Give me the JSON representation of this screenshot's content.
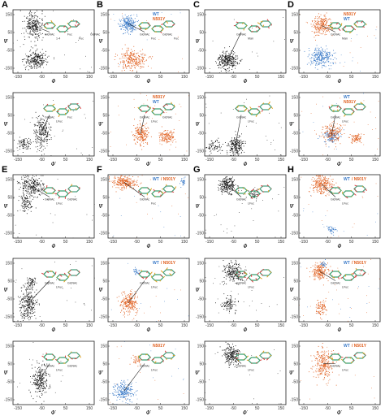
{
  "figure": {
    "colors": {
      "wt": "#3a7ac8",
      "mutant": "#e06020",
      "black": "#1a1a1a",
      "arrow": "#222222"
    },
    "rows": [
      {
        "labels": [
          "A",
          "B",
          "C",
          "D"
        ]
      },
      {
        "labels": [
          "E",
          "F",
          "G",
          "H"
        ]
      }
    ],
    "panels": [
      {
        "id": "A1",
        "letter": "A",
        "xticks": [
          "-150",
          "-50",
          "50",
          "150"
        ],
        "yticks": [
          "150",
          "50",
          "-50",
          "-150"
        ],
        "xlabel": "Φ",
        "ylabel": "Ψ",
        "mols": [
          "GlcNAc",
          "1-4",
          "Fuc",
          "Fuc",
          "GlcNAc"
        ],
        "legend": [],
        "clusters": [
          {
            "c": "black",
            "x": 0.25,
            "y": 0.25,
            "sx": 0.06,
            "sy": 0.1,
            "n": 260
          },
          {
            "c": "black",
            "x": 0.28,
            "y": 0.78,
            "sx": 0.07,
            "sy": 0.07,
            "n": 260
          }
        ]
      },
      {
        "id": "B1",
        "letter": "B",
        "xticks": [
          "-150",
          "-50",
          "50",
          "150"
        ],
        "yticks": [
          "150",
          "50",
          "-50",
          "-150"
        ],
        "xlabel": "Φ",
        "ylabel": "Ψ",
        "mols": [
          "GlcNAc",
          "Fuc",
          "GlcNAc",
          "Fuc"
        ],
        "legend": [
          [
            "WT",
            "wt"
          ],
          [
            "N501Y",
            "mutant"
          ]
        ],
        "clusters": [
          {
            "c": "wt",
            "x": 0.25,
            "y": 0.22,
            "sx": 0.05,
            "sy": 0.06,
            "n": 220
          },
          {
            "c": "mutant",
            "x": 0.3,
            "y": 0.78,
            "sx": 0.08,
            "sy": 0.08,
            "n": 260
          }
        ]
      },
      {
        "id": "C1",
        "letter": "C",
        "xticks": [
          "-150",
          "-50",
          "50",
          "150"
        ],
        "yticks": [
          "150",
          "50",
          "-50",
          "-150"
        ],
        "xlabel": "Φ",
        "ylabel": "Ψ",
        "mols": [
          "GlcNAc",
          "Man"
        ],
        "legend": [],
        "clusters": [
          {
            "c": "black",
            "x": 0.28,
            "y": 0.8,
            "sx": 0.06,
            "sy": 0.07,
            "n": 300
          }
        ]
      },
      {
        "id": "D1",
        "letter": "D",
        "xticks": [
          "-150",
          "-50",
          "50",
          "150"
        ],
        "yticks": [
          "150",
          "50",
          "-50",
          "-150"
        ],
        "xlabel": "Φ",
        "ylabel": "Ψ",
        "mols": [
          "GlcNAc",
          "Man"
        ],
        "legend": [
          [
            "N501Y",
            "mutant"
          ],
          [
            "WT",
            "wt"
          ]
        ],
        "clusters": [
          {
            "c": "mutant",
            "x": 0.28,
            "y": 0.25,
            "sx": 0.06,
            "sy": 0.08,
            "n": 230
          },
          {
            "c": "wt",
            "x": 0.27,
            "y": 0.75,
            "sx": 0.07,
            "sy": 0.07,
            "n": 260
          }
        ]
      },
      {
        "id": "A2",
        "letter": "",
        "xticks": [
          "-150",
          "-50",
          "50",
          "150"
        ],
        "yticks": [
          "150",
          "50",
          "-50",
          "-150"
        ],
        "xlabel": "Φ′",
        "ylabel": "Ψ",
        "mols": [
          "GlcNAc",
          "LFuc",
          "Fuc"
        ],
        "legend": [],
        "clusters": [
          {
            "c": "black",
            "x": 0.35,
            "y": 0.62,
            "sx": 0.05,
            "sy": 0.12,
            "n": 240
          },
          {
            "c": "black",
            "x": 0.12,
            "y": 0.8,
            "sx": 0.04,
            "sy": 0.05,
            "n": 80
          }
        ]
      },
      {
        "id": "B2",
        "letter": "",
        "xticks": [
          "-150",
          "-50",
          "50",
          "150"
        ],
        "yticks": [
          "150",
          "50",
          "-50",
          "-150"
        ],
        "xlabel": "Φ′",
        "ylabel": "Ψ′",
        "mols": [
          "GlcNAc",
          "LFuc",
          "GlcNAc"
        ],
        "legend": [
          [
            "N501Y",
            "mutant"
          ],
          [
            "WT",
            "wt"
          ]
        ],
        "clusters": [
          {
            "c": "mutant",
            "x": 0.4,
            "y": 0.65,
            "sx": 0.05,
            "sy": 0.08,
            "n": 200
          },
          {
            "c": "mutant",
            "x": 0.72,
            "y": 0.68,
            "sx": 0.05,
            "sy": 0.05,
            "n": 140
          }
        ]
      },
      {
        "id": "C2",
        "letter": "",
        "xticks": [
          "-150",
          "-50",
          "50",
          "150"
        ],
        "yticks": [
          "150",
          "50",
          "-50",
          "-150"
        ],
        "xlabel": "Φ",
        "ylabel": "Ψ",
        "mols": [
          "GlcNAc",
          "LFuc"
        ],
        "legend": [],
        "clusters": [
          {
            "c": "black",
            "x": 0.38,
            "y": 0.82,
            "sx": 0.05,
            "sy": 0.07,
            "n": 220
          },
          {
            "c": "black",
            "x": 0.12,
            "y": 0.85,
            "sx": 0.04,
            "sy": 0.05,
            "n": 70
          }
        ]
      },
      {
        "id": "D2",
        "letter": "",
        "xticks": [
          "-150",
          "-50",
          "50",
          "150"
        ],
        "yticks": [
          "150",
          "50",
          "-50",
          "-150"
        ],
        "xlabel": "Φ′",
        "ylabel": "Ψ′",
        "mols": [
          "GlcNAc",
          "LFuc"
        ],
        "legend": [
          [
            "WT",
            "wt"
          ],
          [
            "N501Y",
            "mutant"
          ]
        ],
        "clusters": [
          {
            "c": "wt",
            "x": 0.4,
            "y": 0.68,
            "sx": 0.05,
            "sy": 0.05,
            "n": 140
          },
          {
            "c": "mutant",
            "x": 0.42,
            "y": 0.62,
            "sx": 0.06,
            "sy": 0.08,
            "n": 180
          },
          {
            "c": "mutant",
            "x": 0.7,
            "y": 0.72,
            "sx": 0.04,
            "sy": 0.04,
            "n": 80
          }
        ]
      },
      {
        "id": "E1",
        "letter": "E",
        "xticks": [
          "-150",
          "-50",
          "50",
          "150"
        ],
        "yticks": [
          "150",
          "50",
          "-50",
          "-150"
        ],
        "xlabel": "Φ",
        "ylabel": "Ψ",
        "mols": [
          "GlcNAc",
          "LFuc",
          "GlcNAc"
        ],
        "legend": [],
        "clusters": [
          {
            "c": "black",
            "x": 0.22,
            "y": 0.18,
            "sx": 0.07,
            "sy": 0.08,
            "n": 260
          },
          {
            "c": "black",
            "x": 0.16,
            "y": 0.45,
            "sx": 0.04,
            "sy": 0.06,
            "n": 100
          }
        ]
      },
      {
        "id": "F1",
        "letter": "F",
        "xticks": [
          "-150",
          "-50",
          "50",
          "150"
        ],
        "yticks": [
          "150",
          "50",
          "-50",
          "-150"
        ],
        "xlabel": "Φ",
        "ylabel": "Ψ",
        "mols": [
          "GlcNAc",
          "Fuc"
        ],
        "legend": [
          [
            "WT / N501Y",
            "mixed"
          ]
        ],
        "clusters": [
          {
            "c": "mutant",
            "x": 0.2,
            "y": 0.12,
            "sx": 0.07,
            "sy": 0.05,
            "n": 260
          },
          {
            "c": "wt",
            "x": 0.92,
            "y": 0.1,
            "sx": 0.02,
            "sy": 0.03,
            "n": 30
          }
        ]
      },
      {
        "id": "G1",
        "letter": "G",
        "xticks": [
          "-150",
          "-50",
          "50",
          "150"
        ],
        "yticks": [
          "150",
          "50",
          "-50",
          "-150"
        ],
        "xlabel": "Φ",
        "ylabel": "Ψ",
        "mols": [
          "GlcNAc",
          "LFuc"
        ],
        "legend": [],
        "clusters": [
          {
            "c": "black",
            "x": 0.28,
            "y": 0.16,
            "sx": 0.05,
            "sy": 0.07,
            "n": 230
          },
          {
            "c": "black",
            "x": 0.6,
            "y": 0.3,
            "sx": 0.04,
            "sy": 0.04,
            "n": 50
          }
        ]
      },
      {
        "id": "H1",
        "letter": "H",
        "xticks": [
          "-150",
          "-50",
          "50",
          "150"
        ],
        "yticks": [
          "150",
          "50",
          "-50",
          "-150"
        ],
        "xlabel": "Φ",
        "ylabel": "Ψ",
        "mols": [
          "GlcNAc",
          "LFuc"
        ],
        "legend": [
          [
            "WT / N501Y",
            "mixed"
          ]
        ],
        "clusters": [
          {
            "c": "mutant",
            "x": 0.28,
            "y": 0.15,
            "sx": 0.06,
            "sy": 0.07,
            "n": 250
          },
          {
            "c": "wt",
            "x": 0.4,
            "y": 0.86,
            "sx": 0.03,
            "sy": 0.03,
            "n": 40
          }
        ]
      },
      {
        "id": "E2",
        "letter": "",
        "xticks": [
          "-150",
          "-50",
          "50",
          "150"
        ],
        "yticks": [
          "150",
          "50",
          "-50",
          "-150"
        ],
        "xlabel": "Φ",
        "ylabel": "Ψ",
        "mols": [
          "GlcNAc",
          "LFuc",
          "GlcNAc"
        ],
        "legend": [],
        "clusters": [
          {
            "c": "black",
            "x": 0.18,
            "y": 0.72,
            "sx": 0.05,
            "sy": 0.12,
            "n": 260
          },
          {
            "c": "black",
            "x": 0.22,
            "y": 0.38,
            "sx": 0.03,
            "sy": 0.05,
            "n": 70
          }
        ]
      },
      {
        "id": "F2",
        "letter": "",
        "xticks": [
          "-150",
          "-50",
          "50",
          "150"
        ],
        "yticks": [
          "150",
          "50",
          "-50",
          "-150"
        ],
        "xlabel": "Φ",
        "ylabel": "Ψ",
        "mols": [
          "GlcNAc",
          "LFuc"
        ],
        "legend": [
          [
            "WT / N501Y",
            "mixed"
          ]
        ],
        "clusters": [
          {
            "c": "mutant",
            "x": 0.25,
            "y": 0.7,
            "sx": 0.05,
            "sy": 0.08,
            "n": 240
          },
          {
            "c": "wt",
            "x": 0.35,
            "y": 0.2,
            "sx": 0.02,
            "sy": 0.03,
            "n": 30
          }
        ]
      },
      {
        "id": "G2",
        "letter": "",
        "xticks": [
          "-150",
          "-50",
          "50",
          "150"
        ],
        "yticks": [
          "150",
          "50",
          "-50",
          "-150"
        ],
        "xlabel": "Φ",
        "ylabel": "Ψ",
        "mols": [
          "GlcNAc",
          "LFuc"
        ],
        "legend": [],
        "clusters": [
          {
            "c": "black",
            "x": 0.35,
            "y": 0.22,
            "sx": 0.06,
            "sy": 0.08,
            "n": 220
          },
          {
            "c": "black",
            "x": 0.3,
            "y": 0.72,
            "sx": 0.04,
            "sy": 0.06,
            "n": 100
          }
        ]
      },
      {
        "id": "H2",
        "letter": "",
        "xticks": [
          "-150",
          "-50",
          "50",
          "150"
        ],
        "yticks": [
          "150",
          "50",
          "-50",
          "-150"
        ],
        "xlabel": "Φ",
        "ylabel": "Ψ",
        "mols": [
          "GlcNAc",
          "LFuc"
        ],
        "legend": [
          [
            "WT / N501Y",
            "mixed"
          ]
        ],
        "clusters": [
          {
            "c": "mutant",
            "x": 0.25,
            "y": 0.2,
            "sx": 0.05,
            "sy": 0.07,
            "n": 200
          },
          {
            "c": "mutant",
            "x": 0.27,
            "y": 0.78,
            "sx": 0.03,
            "sy": 0.06,
            "n": 90
          },
          {
            "c": "wt",
            "x": 0.3,
            "y": 0.08,
            "sx": 0.02,
            "sy": 0.02,
            "n": 25
          }
        ]
      },
      {
        "id": "E3",
        "letter": "",
        "xticks": [
          "-150",
          "-50",
          "50",
          "150"
        ],
        "yticks": [
          "150",
          "50",
          "-50",
          "-150"
        ],
        "xlabel": "Φ′",
        "ylabel": "Ψ",
        "mols": [
          "GlcNAc",
          "LFuc",
          "GlcNAc"
        ],
        "legend": [],
        "clusters": [
          {
            "c": "black",
            "x": 0.32,
            "y": 0.62,
            "sx": 0.05,
            "sy": 0.12,
            "n": 260
          }
        ]
      },
      {
        "id": "F3",
        "letter": "",
        "xticks": [
          "-150",
          "-50",
          "50",
          "150"
        ],
        "yticks": [
          "150",
          "50",
          "-50",
          "-150"
        ],
        "xlabel": "Φ′",
        "ylabel": "Ψ′",
        "mols": [
          "GlcNAc",
          "LFuc"
        ],
        "legend": [
          [
            "N501Y",
            "mutant"
          ]
        ],
        "clusters": [
          {
            "c": "wt",
            "x": 0.2,
            "y": 0.78,
            "sx": 0.06,
            "sy": 0.07,
            "n": 230
          },
          {
            "c": "mutant",
            "x": 0.35,
            "y": 0.3,
            "sx": 0.03,
            "sy": 0.04,
            "n": 40
          }
        ]
      },
      {
        "id": "G3",
        "letter": "",
        "xticks": [
          "-150",
          "-50",
          "50",
          "150"
        ],
        "yticks": [
          "150",
          "50",
          "-50",
          "-150"
        ],
        "xlabel": "Φ′",
        "ylabel": "Ψ′",
        "mols": [
          "GlcNAc",
          "LFuc"
        ],
        "legend": [],
        "clusters": [
          {
            "c": "black",
            "x": 0.32,
            "y": 0.2,
            "sx": 0.05,
            "sy": 0.08,
            "n": 220
          }
        ]
      },
      {
        "id": "H3",
        "letter": "",
        "xticks": [
          "-150",
          "-50",
          "50",
          "150"
        ],
        "yticks": [
          "150",
          "50",
          "-50",
          "-150"
        ],
        "xlabel": "Φ′",
        "ylabel": "Ψ′",
        "mols": [
          "GlcNAc",
          "LFuc"
        ],
        "legend": [
          [
            "WT / N501Y",
            "mixed"
          ]
        ],
        "clusters": [
          {
            "c": "mutant",
            "x": 0.3,
            "y": 0.35,
            "sx": 0.06,
            "sy": 0.12,
            "n": 260
          }
        ]
      }
    ]
  }
}
